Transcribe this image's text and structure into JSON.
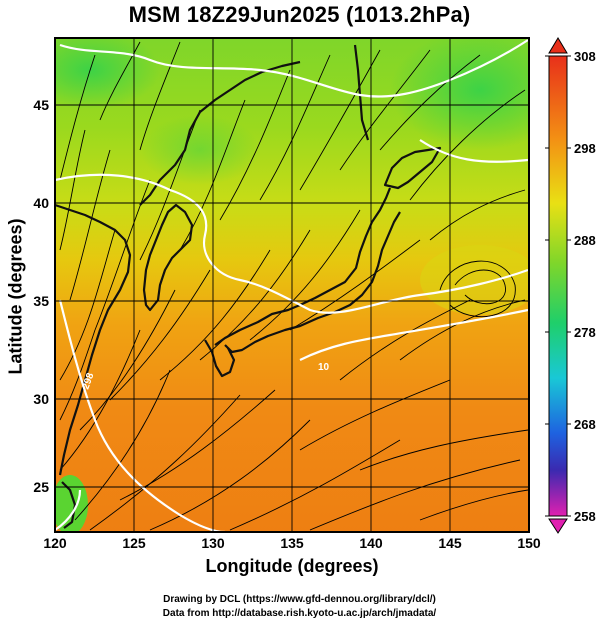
{
  "title": "MSM 18Z29Jun2025 (1013.2hPa)",
  "axes": {
    "xlabel": "Longitude (degrees)",
    "ylabel": "Latitude  (degrees)",
    "x_ticks": [
      "120",
      "125",
      "130",
      "135",
      "140",
      "145",
      "150"
    ],
    "y_ticks": [
      "25",
      "30",
      "35",
      "40",
      "45"
    ],
    "x_range": [
      120,
      150
    ],
    "y_range": [
      22.4,
      47.6
    ]
  },
  "colorbar": {
    "min": 258,
    "max": 308,
    "ticks": [
      "308",
      "298",
      "288",
      "278",
      "268",
      "258"
    ]
  },
  "contour_labels": [
    "10",
    "298"
  ],
  "credits": {
    "line1": "Drawing by DCL (https://www.gfd-dennou.org/library/dcl/)",
    "line2": "Data from http://database.rish.kyoto-u.ac.jp/arch/jmadata/"
  },
  "colors": {
    "warm": "#f08a14",
    "cool": "#2fcf3a",
    "contour": "#ffffff",
    "coast": "#111111"
  }
}
